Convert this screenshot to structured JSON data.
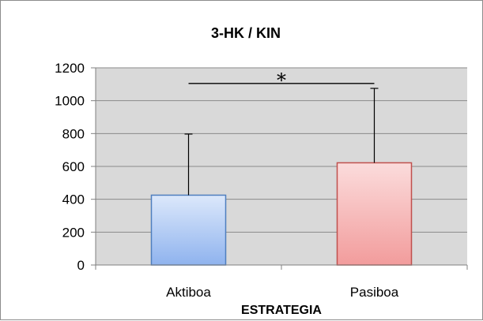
{
  "chart_data": {
    "type": "bar",
    "title": "3-HK / KIN",
    "xlabel": "ESTRATEGIA",
    "ylabel": "",
    "ylim": [
      0,
      1200
    ],
    "yticks": [
      0,
      200,
      400,
      600,
      800,
      1000,
      1200
    ],
    "ytick_labels": [
      "0",
      "200",
      "400",
      "600",
      "800",
      "1000",
      "1200"
    ],
    "grid": true,
    "legend": "none",
    "categories": [
      "Aktiboa",
      "Pasiboa"
    ],
    "values": [
      425,
      622
    ],
    "error_upper": [
      797,
      1075
    ],
    "bar_colors": [
      "#9cbcf0",
      "#f4a8a8"
    ],
    "bar_border_colors": [
      "#4f7fbf",
      "#c0504d"
    ],
    "plot_background": "#d9d9d9",
    "significance": {
      "label": "*",
      "between": [
        "Aktiboa",
        "Pasiboa"
      ],
      "y": 1105
    }
  }
}
